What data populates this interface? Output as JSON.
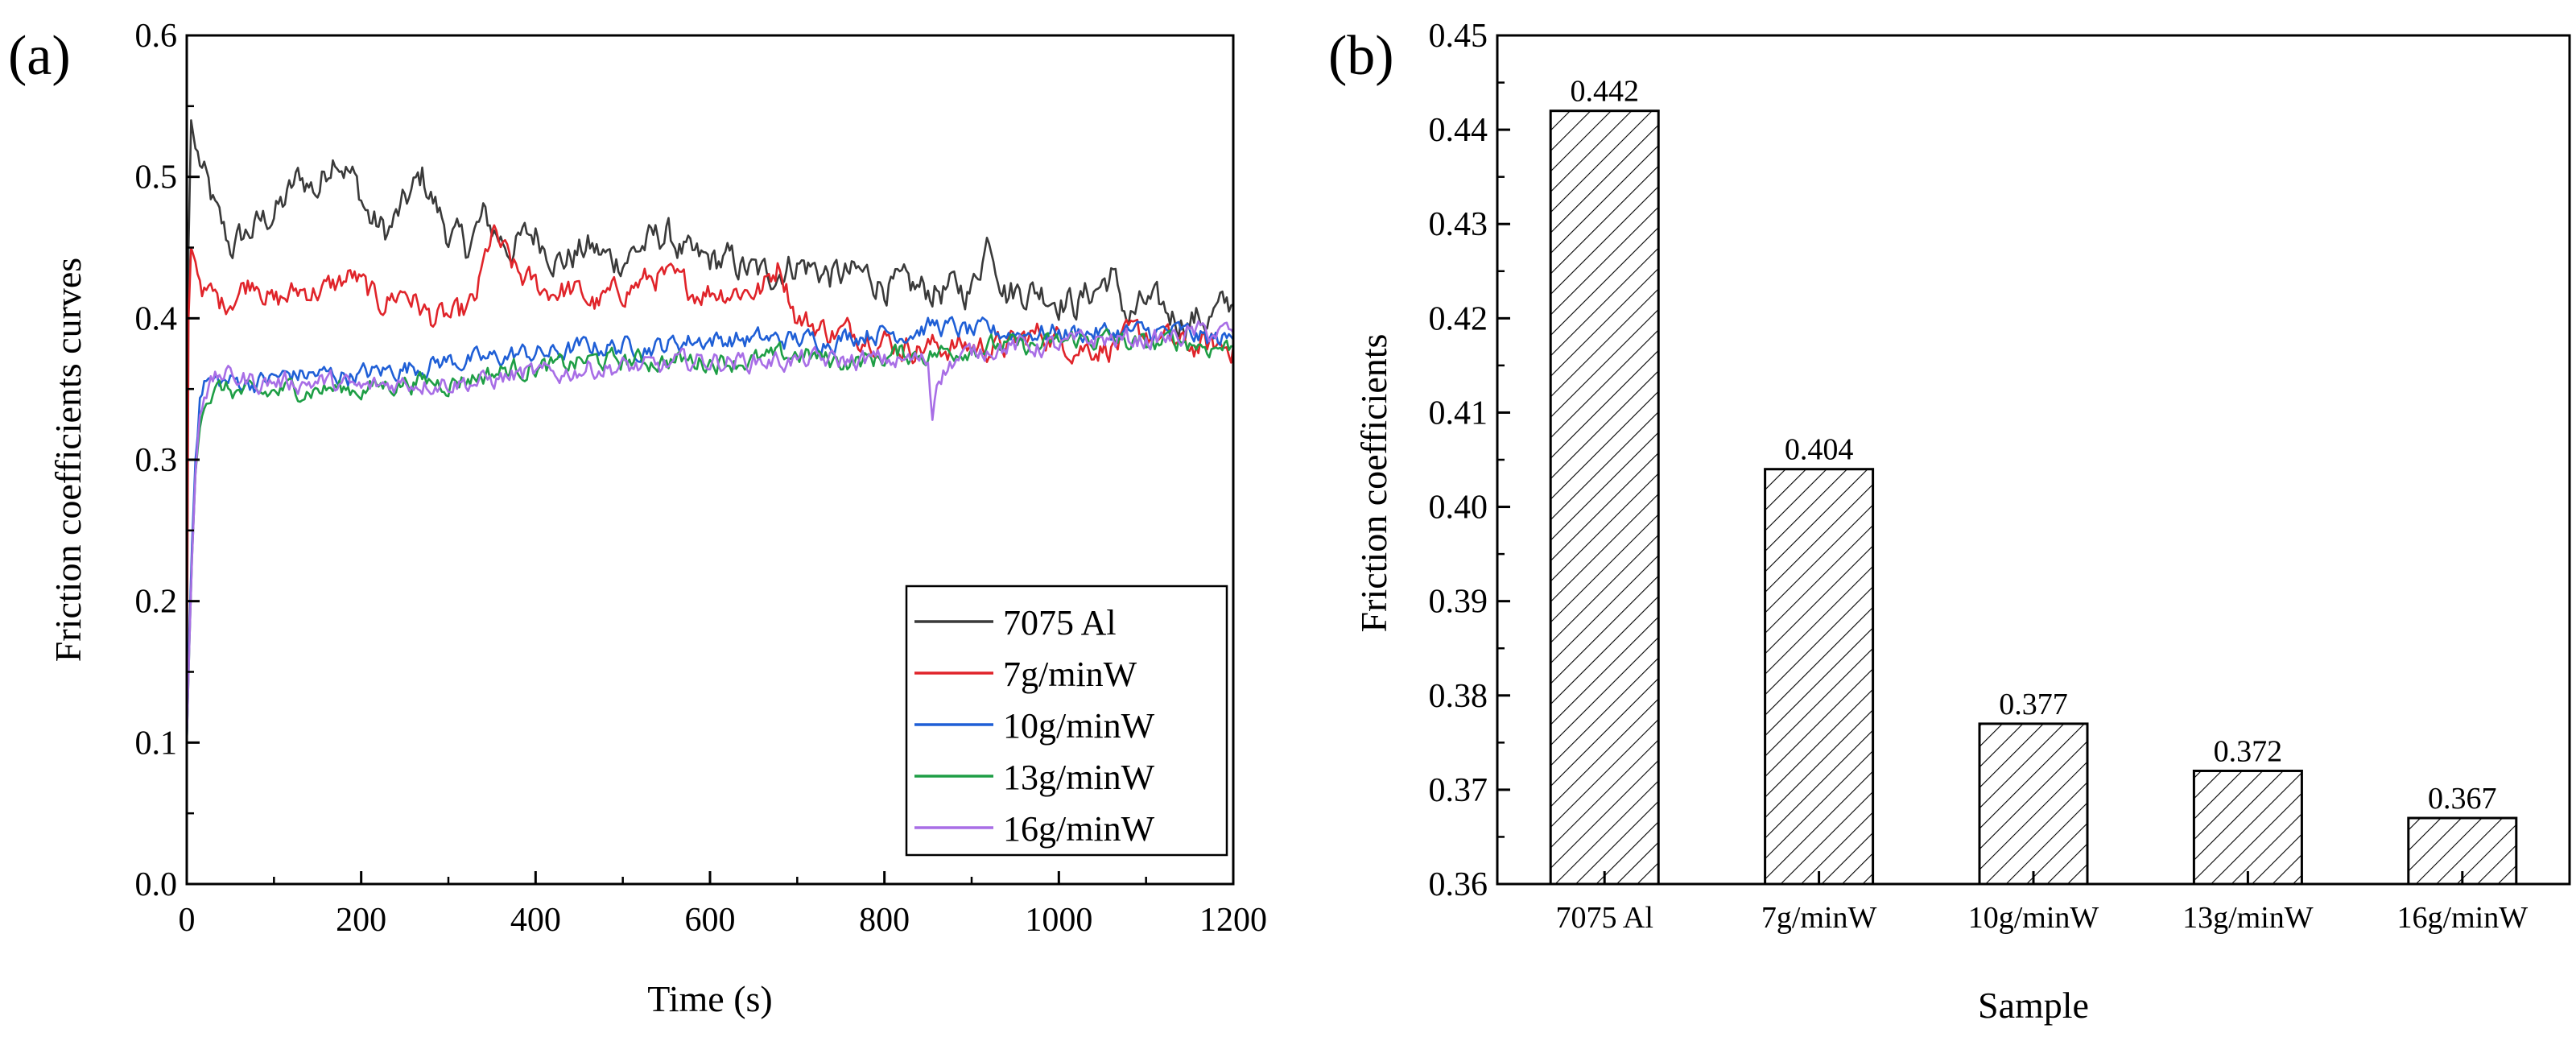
{
  "colors": {
    "7075": "#3a3a3a",
    "w7": "#e0242a",
    "w10": "#1f5fd6",
    "w13": "#1e9e45",
    "w16": "#a86ee6"
  },
  "chart_data": [
    {
      "type": "line",
      "panel_label": "(a)",
      "xlabel": "Time (s)",
      "ylabel": "Friction coefficients curves",
      "xlim": [
        0,
        1200
      ],
      "ylim": [
        0.0,
        0.6
      ],
      "xticks": [
        "0",
        "200",
        "400",
        "600",
        "800",
        "1000",
        "1200"
      ],
      "yticks": [
        "0.0",
        "0.1",
        "0.2",
        "0.3",
        "0.4",
        "0.5",
        "0.6"
      ],
      "legend_position": "lower-right",
      "series": [
        {
          "name": "7075 Al",
          "color_key": "7075",
          "x": [
            0,
            2,
            5,
            10,
            20,
            35,
            50,
            70,
            90,
            110,
            130,
            150,
            170,
            190,
            210,
            230,
            250,
            270,
            300,
            320,
            340,
            370,
            400,
            430,
            460,
            490,
            520,
            550,
            580,
            620,
            660,
            700,
            740,
            780,
            820,
            860,
            900,
            920,
            940,
            980,
            1020,
            1060,
            1080,
            1100,
            1140,
            1170,
            1200
          ],
          "values": [
            0.15,
            0.45,
            0.54,
            0.52,
            0.5,
            0.47,
            0.45,
            0.46,
            0.47,
            0.48,
            0.5,
            0.49,
            0.52,
            0.5,
            0.47,
            0.46,
            0.48,
            0.5,
            0.46,
            0.45,
            0.47,
            0.45,
            0.46,
            0.44,
            0.45,
            0.44,
            0.45,
            0.46,
            0.44,
            0.44,
            0.43,
            0.44,
            0.43,
            0.43,
            0.42,
            0.42,
            0.42,
            0.46,
            0.42,
            0.42,
            0.41,
            0.43,
            0.4,
            0.41,
            0.4,
            0.4,
            0.41
          ]
        },
        {
          "name": "7g/minW",
          "color_key": "w7",
          "x": [
            0,
            2,
            5,
            10,
            20,
            40,
            60,
            80,
            100,
            130,
            160,
            190,
            220,
            250,
            280,
            310,
            330,
            350,
            380,
            410,
            440,
            470,
            500,
            540,
            580,
            620,
            660,
            680,
            700,
            740,
            780,
            820,
            860,
            900,
            940,
            980,
            1020,
            1060,
            1100,
            1140,
            1170,
            1200
          ],
          "values": [
            0.12,
            0.4,
            0.45,
            0.44,
            0.42,
            0.41,
            0.42,
            0.43,
            0.41,
            0.42,
            0.42,
            0.43,
            0.41,
            0.42,
            0.4,
            0.4,
            0.41,
            0.46,
            0.43,
            0.42,
            0.42,
            0.41,
            0.42,
            0.43,
            0.42,
            0.42,
            0.42,
            0.44,
            0.4,
            0.39,
            0.39,
            0.38,
            0.38,
            0.38,
            0.38,
            0.39,
            0.38,
            0.38,
            0.39,
            0.38,
            0.38,
            0.38
          ]
        },
        {
          "name": "10g/minW",
          "color_key": "w10",
          "x": [
            0,
            3,
            6,
            10,
            15,
            20,
            40,
            80,
            120,
            160,
            200,
            250,
            300,
            340,
            380,
            420,
            460,
            500,
            540,
            580,
            620,
            660,
            700,
            740,
            780,
            820,
            860,
            900,
            940,
            980,
            1020,
            1060,
            1100,
            1140,
            1170,
            1200
          ],
          "values": [
            0.1,
            0.18,
            0.24,
            0.3,
            0.34,
            0.355,
            0.355,
            0.355,
            0.36,
            0.36,
            0.36,
            0.365,
            0.37,
            0.37,
            0.375,
            0.375,
            0.38,
            0.38,
            0.38,
            0.385,
            0.385,
            0.385,
            0.385,
            0.385,
            0.39,
            0.39,
            0.395,
            0.39,
            0.39,
            0.39,
            0.39,
            0.39,
            0.39,
            0.39,
            0.385,
            0.385
          ]
        },
        {
          "name": "13g/minW",
          "color_key": "w13",
          "x": [
            0,
            3,
            6,
            10,
            15,
            20,
            40,
            80,
            120,
            160,
            200,
            250,
            300,
            340,
            380,
            420,
            460,
            500,
            540,
            580,
            620,
            660,
            700,
            740,
            780,
            820,
            860,
            900,
            940,
            980,
            1020,
            1060,
            1100,
            1140,
            1170,
            1200
          ],
          "values": [
            0.1,
            0.17,
            0.23,
            0.29,
            0.33,
            0.345,
            0.35,
            0.345,
            0.35,
            0.35,
            0.35,
            0.355,
            0.355,
            0.36,
            0.365,
            0.365,
            0.37,
            0.37,
            0.37,
            0.37,
            0.37,
            0.37,
            0.375,
            0.37,
            0.37,
            0.375,
            0.375,
            0.38,
            0.38,
            0.38,
            0.385,
            0.385,
            0.38,
            0.385,
            0.38,
            0.38
          ]
        },
        {
          "name": "16g/minW",
          "color_key": "w16",
          "x": [
            0,
            3,
            6,
            10,
            15,
            20,
            40,
            80,
            120,
            160,
            200,
            250,
            300,
            340,
            380,
            420,
            460,
            500,
            540,
            580,
            620,
            660,
            700,
            740,
            780,
            820,
            850,
            855,
            860,
            880,
            920,
            960,
            1000,
            1040,
            1080,
            1120,
            1160,
            1200
          ],
          "values": [
            0.1,
            0.17,
            0.23,
            0.29,
            0.335,
            0.35,
            0.36,
            0.355,
            0.355,
            0.355,
            0.35,
            0.355,
            0.355,
            0.355,
            0.36,
            0.36,
            0.365,
            0.365,
            0.365,
            0.37,
            0.37,
            0.37,
            0.37,
            0.37,
            0.37,
            0.37,
            0.37,
            0.33,
            0.36,
            0.37,
            0.38,
            0.38,
            0.38,
            0.385,
            0.385,
            0.385,
            0.39,
            0.39
          ]
        }
      ]
    },
    {
      "type": "bar",
      "panel_label": "(b)",
      "xlabel": "Sample",
      "ylabel": "Friction coefficients",
      "categories": [
        "7075 Al",
        "7g/minW",
        "10g/minW",
        "13g/minW",
        "16g/minW"
      ],
      "values": [
        0.442,
        0.404,
        0.377,
        0.372,
        0.367
      ],
      "value_labels": [
        "0.442",
        "0.404",
        "0.377",
        "0.372",
        "0.367"
      ],
      "ylim": [
        0.36,
        0.45
      ],
      "yticks": [
        "0.36",
        "0.37",
        "0.38",
        "0.39",
        "0.40",
        "0.41",
        "0.42",
        "0.43",
        "0.44",
        "0.45"
      ]
    }
  ]
}
